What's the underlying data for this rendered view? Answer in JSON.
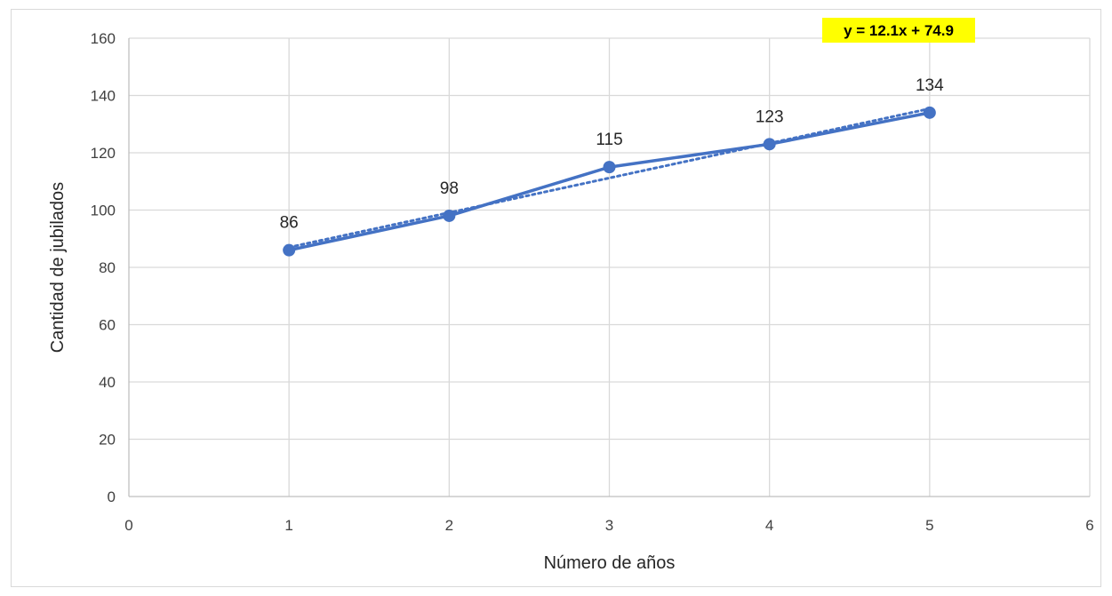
{
  "chart_data": {
    "type": "scatter",
    "title": "",
    "xlabel": "Número de años",
    "ylabel": "Cantidad de jubilados",
    "xlim": [
      0,
      6
    ],
    "ylim": [
      0,
      160
    ],
    "xticks": [
      0,
      1,
      2,
      3,
      4,
      5,
      6
    ],
    "yticks": [
      0,
      20,
      40,
      60,
      80,
      100,
      120,
      140,
      160
    ],
    "grid": true,
    "legend": "none",
    "series": [
      {
        "x": [
          1,
          2,
          3,
          4,
          5
        ],
        "y": [
          86,
          98,
          115,
          123,
          134
        ],
        "data_labels": [
          "86",
          "98",
          "115",
          "123",
          "134"
        ],
        "style": "line-with-markers",
        "color": "#4472c4"
      }
    ],
    "trendline": {
      "type": "linear",
      "slope": 12.1,
      "intercept": 74.9,
      "style": "dotted",
      "color": "#4472c4",
      "equation_label": "y = 12.1x + 74.9",
      "equation_background": "#ffff00"
    }
  }
}
